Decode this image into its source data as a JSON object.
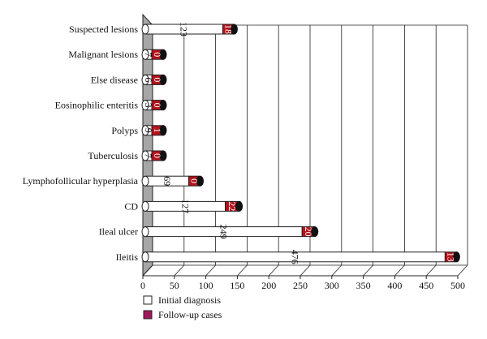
{
  "chart_data": {
    "type": "bar",
    "orientation": "horizontal",
    "style": "3d-cylinder-stacked",
    "categories": [
      "Suspected lesions",
      "Malignant lesions",
      "Else disease",
      "Eosinophilic enteritis",
      "Polyps",
      "Tuberculosis",
      "Lymphofollicular hyperplasia",
      "CD",
      "Ileal ulcer",
      "Ileitis"
    ],
    "series": [
      {
        "name": "Initial diagnosis",
        "color": "#ffffff",
        "values": [
          123,
          7,
          6,
          3,
          9,
          7,
          69,
          127,
          249,
          476
        ],
        "labels": [
          "123",
          "7",
          "6",
          "3",
          "9",
          "7",
          "69",
          "127",
          "249",
          "476"
        ]
      },
      {
        "name": "Follow-up cases",
        "color": "#b5121b",
        "values": [
          18,
          0,
          0,
          0,
          1,
          0,
          0,
          22,
          20,
          13
        ],
        "labels": [
          "18",
          "0",
          "0",
          "0",
          "1",
          "0",
          "0",
          "22",
          "20",
          "13"
        ]
      }
    ],
    "xlim": [
      0,
      500
    ],
    "xticks": [
      "0",
      "50",
      "100",
      "150",
      "200",
      "250",
      "300",
      "350",
      "400",
      "450",
      "500"
    ],
    "grid": true,
    "legend": {
      "position": "bottom-left",
      "items": [
        "Initial diagnosis",
        "Follow-up cases"
      ],
      "follow_up_swatch_color": "#a0185a"
    },
    "title": "",
    "xlabel": "",
    "ylabel": ""
  }
}
